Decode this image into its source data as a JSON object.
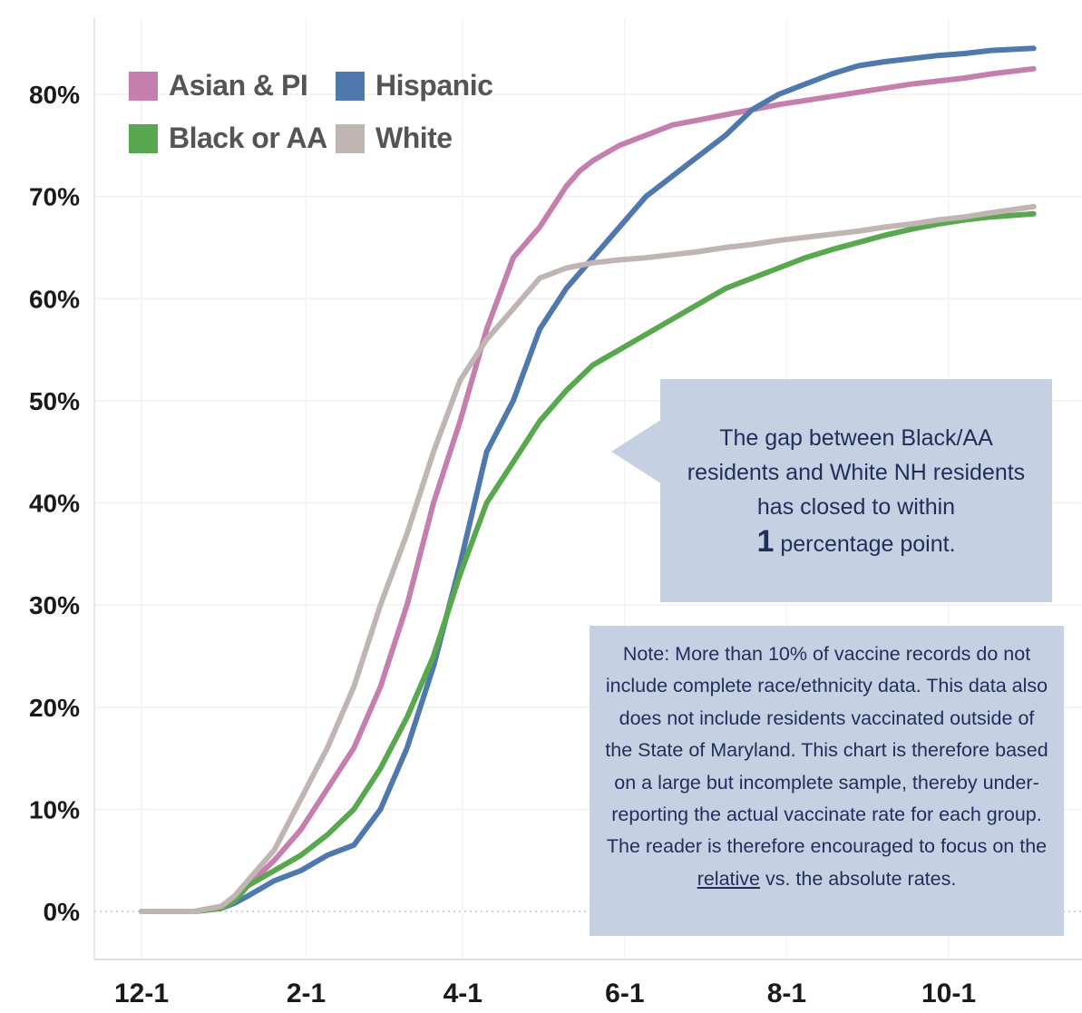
{
  "chart_data": {
    "type": "line",
    "title": "",
    "xlabel": "",
    "ylabel": "",
    "ylim": [
      0,
      85
    ],
    "x_tick_labels": [
      "12-1",
      "2-1",
      "4-1",
      "6-1",
      "8-1",
      "10-1"
    ],
    "y_tick_labels": [
      "0%",
      "10%",
      "20%",
      "30%",
      "40%",
      "50%",
      "60%",
      "70%",
      "80%"
    ],
    "y_tick_values": [
      0,
      10,
      20,
      30,
      40,
      50,
      60,
      70,
      80
    ],
    "grid": true,
    "legend_position": "top-left",
    "x_day_ticks": [
      0,
      62,
      121,
      182,
      243,
      304
    ],
    "series": [
      {
        "name": "Asian & PI",
        "color": "#c47fae",
        "x": [
          0,
          20,
          30,
          35,
          40,
          50,
          60,
          70,
          80,
          90,
          100,
          110,
          120,
          130,
          140,
          150,
          160,
          165,
          170,
          180,
          190,
          200,
          210,
          220,
          230,
          240,
          250,
          260,
          270,
          280,
          290,
          300,
          310,
          320,
          336
        ],
        "y": [
          0,
          0,
          0.5,
          1,
          2.5,
          5,
          8,
          12,
          16,
          22,
          30,
          40,
          48,
          57,
          64,
          67,
          71,
          72.5,
          73.5,
          75,
          76,
          77,
          77.5,
          78,
          78.5,
          79,
          79.4,
          79.8,
          80.2,
          80.6,
          81,
          81.3,
          81.6,
          82,
          82.5
        ]
      },
      {
        "name": "Hispanic",
        "color": "#4f79ad",
        "x": [
          0,
          20,
          30,
          35,
          40,
          50,
          60,
          70,
          80,
          90,
          100,
          110,
          120,
          130,
          140,
          150,
          160,
          170,
          180,
          190,
          200,
          210,
          220,
          230,
          240,
          250,
          260,
          270,
          280,
          290,
          300,
          310,
          320,
          336
        ],
        "y": [
          0,
          0,
          0.3,
          0.8,
          1.5,
          3,
          4,
          5.5,
          6.5,
          10,
          16,
          24,
          34,
          45,
          50,
          57,
          61,
          64,
          67,
          70,
          72,
          74,
          76,
          78.5,
          80,
          81,
          82,
          82.8,
          83.2,
          83.5,
          83.8,
          84,
          84.3,
          84.5
        ]
      },
      {
        "name": "Black or AA",
        "color": "#59a84f",
        "x": [
          0,
          20,
          30,
          35,
          40,
          50,
          60,
          70,
          80,
          90,
          100,
          110,
          120,
          130,
          140,
          150,
          160,
          170,
          180,
          190,
          200,
          210,
          220,
          230,
          240,
          250,
          260,
          270,
          280,
          290,
          300,
          310,
          320,
          336
        ],
        "y": [
          0,
          0,
          0.3,
          1,
          2.5,
          4,
          5.5,
          7.5,
          10,
          14,
          19,
          25,
          33,
          40,
          44,
          48,
          51,
          53.5,
          55,
          56.5,
          58,
          59.5,
          61,
          62,
          63,
          64,
          64.8,
          65.5,
          66.2,
          66.8,
          67.3,
          67.7,
          68,
          68.3
        ]
      },
      {
        "name": "White",
        "color": "#c0b5b3",
        "x": [
          0,
          20,
          30,
          35,
          40,
          50,
          60,
          70,
          80,
          90,
          100,
          110,
          120,
          130,
          140,
          150,
          160,
          170,
          180,
          190,
          200,
          210,
          220,
          230,
          240,
          250,
          260,
          270,
          280,
          290,
          300,
          310,
          320,
          336
        ],
        "y": [
          0,
          0,
          0.5,
          1.5,
          3,
          6,
          11,
          16,
          22,
          30,
          37,
          45,
          52,
          56,
          59,
          62,
          63,
          63.5,
          63.8,
          64,
          64.3,
          64.6,
          65,
          65.3,
          65.7,
          66,
          66.3,
          66.6,
          67,
          67.3,
          67.7,
          68,
          68.4,
          69
        ]
      }
    ]
  },
  "legend": {
    "items": [
      {
        "label": "Asian & PI",
        "color": "#c47fae"
      },
      {
        "label": "Hispanic",
        "color": "#4f79ad"
      },
      {
        "label": "Black or AA",
        "color": "#59a84f"
      },
      {
        "label": "White",
        "color": "#c0b5b3"
      }
    ]
  },
  "callout": {
    "line1": "The gap between Black/AA",
    "line2": "residents and White NH residents",
    "line3": "has closed to within",
    "big_number": "1",
    "line4_suffix": " percentage point."
  },
  "note": {
    "text_before": "Note: More than 10% of vaccine records do not include complete race/ethnicity data. This data also does not include residents vaccinated outside of the State of Maryland. This chart is therefore based on a large but incomplete sample, thereby under-reporting the actual vaccinate rate for each group. The reader is therefore encouraged to focus on the ",
    "underlined": "relative",
    "text_after": " vs. the absolute rates."
  }
}
